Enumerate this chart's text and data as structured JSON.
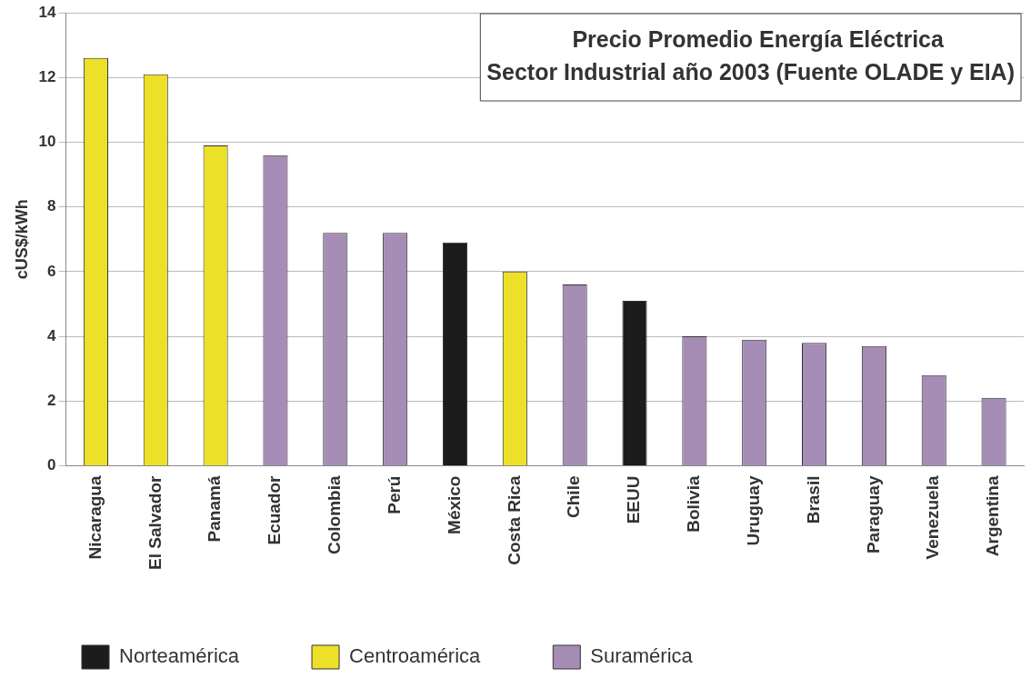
{
  "chart_data": {
    "type": "bar",
    "title": "Precio Promedio Energía Eléctrica\nSector Industrial año 2003 (Fuente OLADE y EIA)",
    "ylabel": "cUS$/kWh",
    "categories": [
      "Nicaragua",
      "El Salvador",
      "Panamá",
      "Ecuador",
      "Colombia",
      "Perú",
      "México",
      "Costa Rica",
      "Chile",
      "EEUU",
      "Bolivia",
      "Uruguay",
      "Brasil",
      "Paraguay",
      "Venezuela",
      "Argentina"
    ],
    "series": [
      {
        "name": "Norteamérica",
        "color": "#1c1c1c",
        "values": [
          null,
          null,
          null,
          null,
          null,
          null,
          6.9,
          null,
          null,
          5.1,
          null,
          null,
          null,
          null,
          null,
          null
        ]
      },
      {
        "name": "Centroamérica",
        "color": "#ede028",
        "values": [
          12.6,
          12.1,
          9.9,
          null,
          null,
          null,
          null,
          6.0,
          null,
          null,
          null,
          null,
          null,
          null,
          null,
          null
        ]
      },
      {
        "name": "Suramérica",
        "color": "#a58db5",
        "values": [
          null,
          null,
          null,
          9.6,
          7.2,
          7.2,
          null,
          null,
          5.6,
          null,
          4.0,
          3.9,
          3.8,
          3.7,
          2.8,
          2.1
        ]
      }
    ],
    "ylim": [
      0,
      14
    ],
    "yticks": [
      0,
      2,
      4,
      6,
      8,
      10,
      12,
      14
    ],
    "grid": "y",
    "legend": "bottom left"
  }
}
